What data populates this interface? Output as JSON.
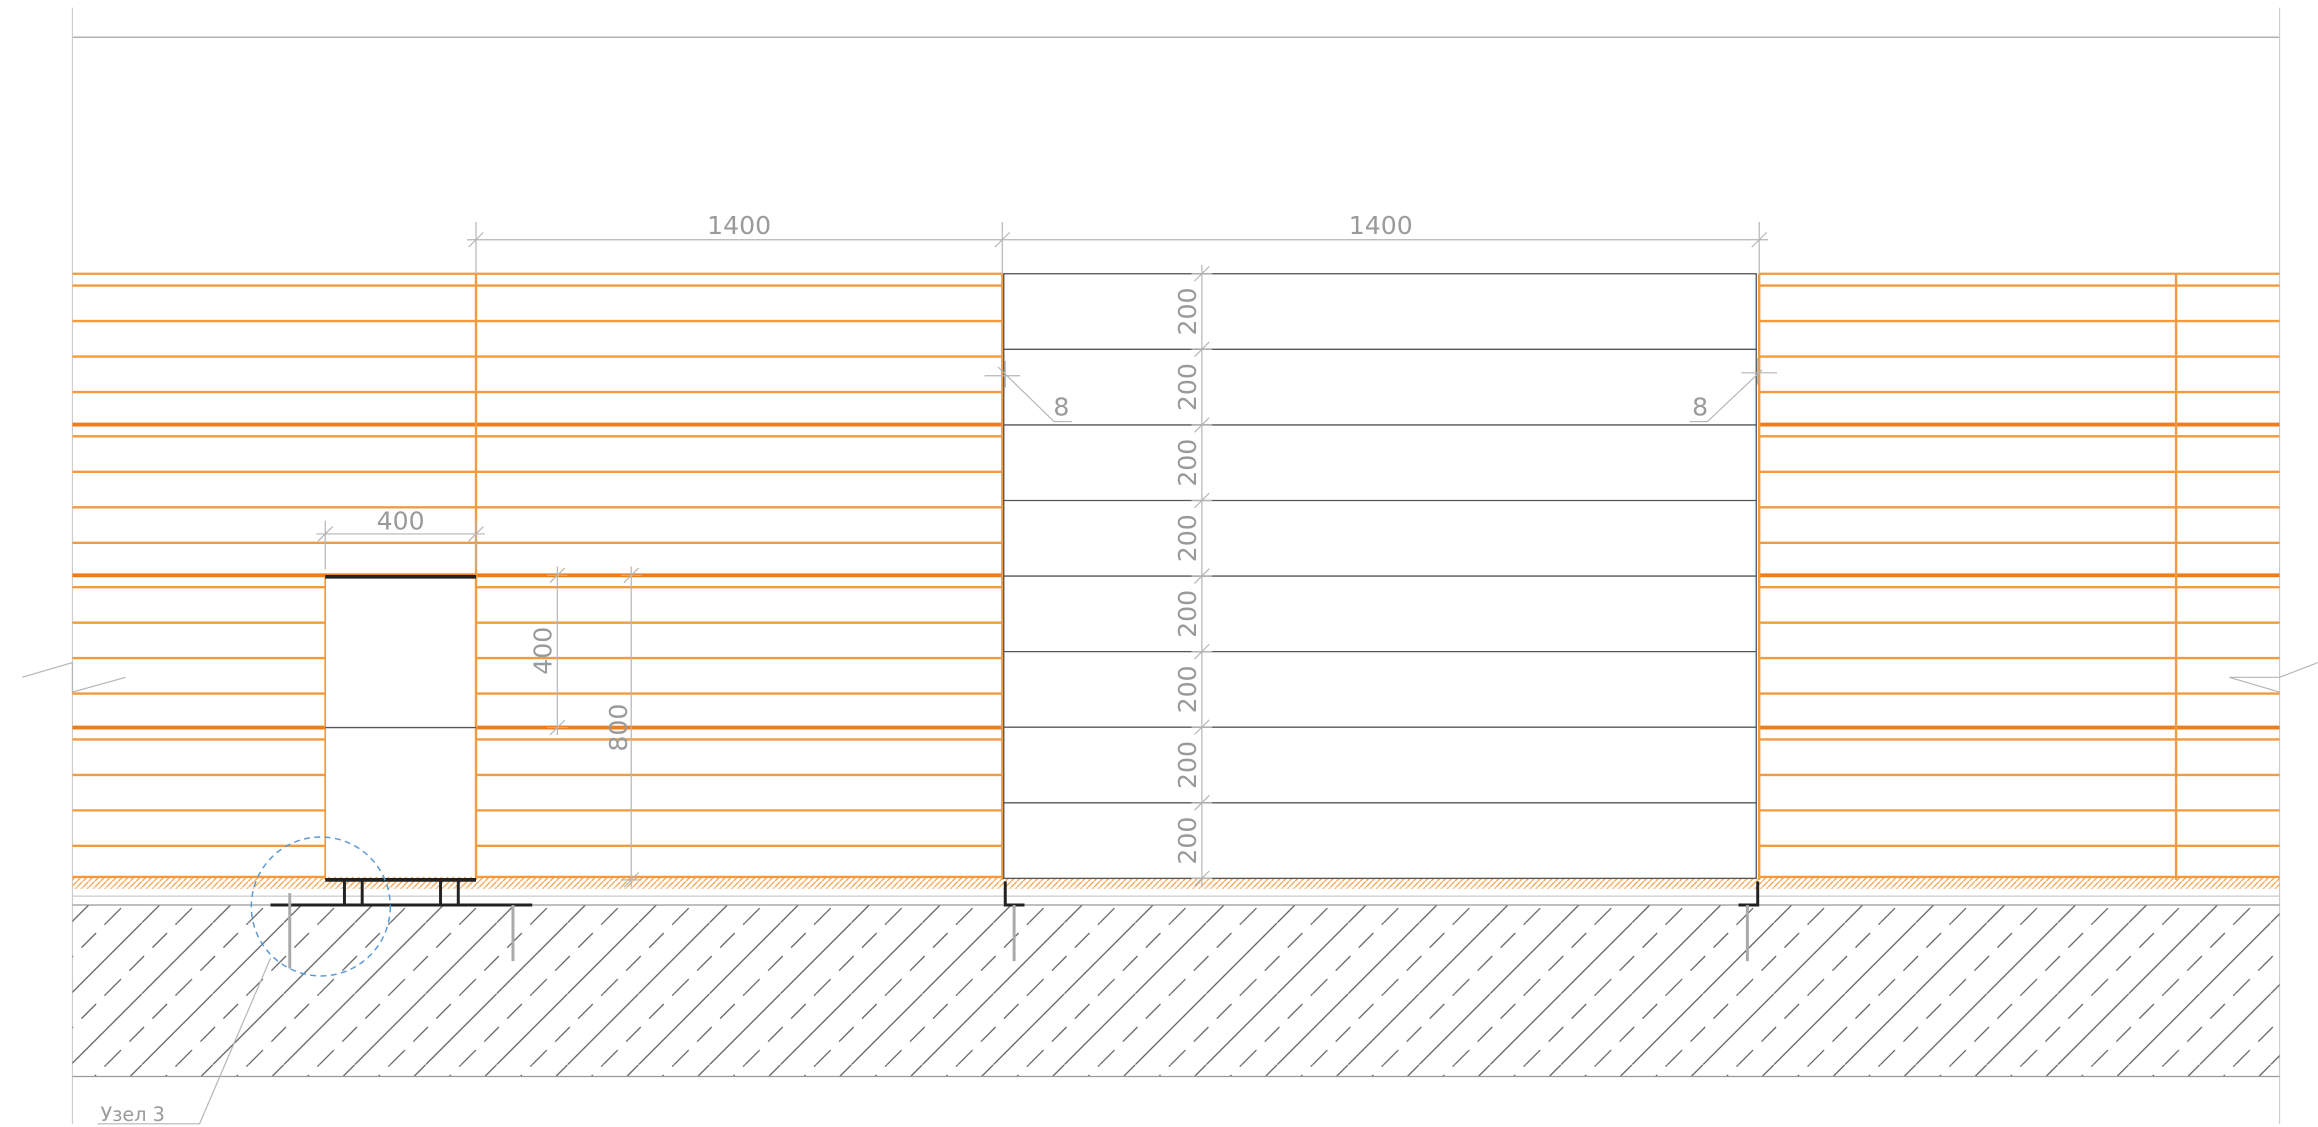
{
  "dimensions": {
    "top_left": 1400,
    "top_right": 1400,
    "window_width": 400,
    "window_height": 400,
    "opening_height": 800,
    "gap_left": 8,
    "gap_right": 8,
    "panel_heights": [
      200,
      200,
      200,
      200,
      200,
      200,
      200,
      200
    ]
  },
  "callout": "Узел 3"
}
